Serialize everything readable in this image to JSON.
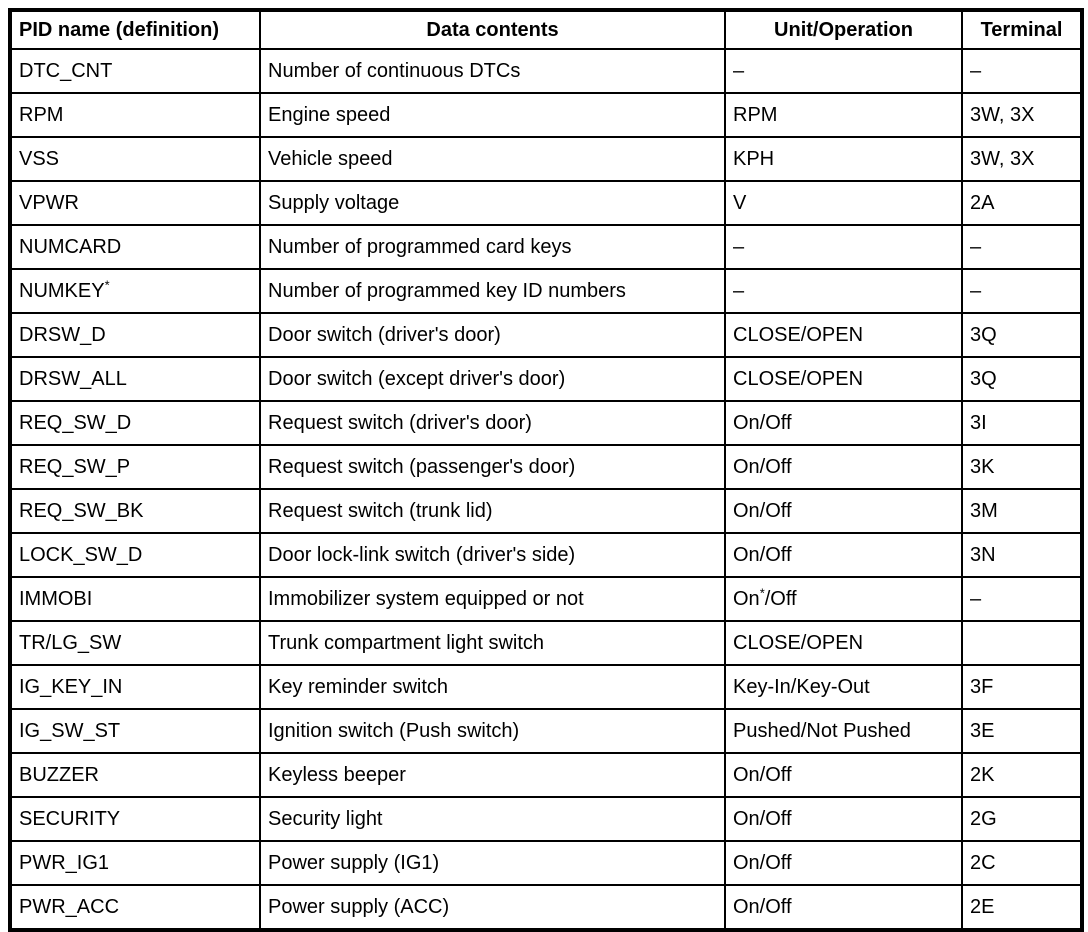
{
  "page": {
    "background_color": "#ffffff",
    "text_color": "#000000",
    "border_color": "#000000"
  },
  "table": {
    "columns": [
      {
        "label": "PID name (definition)"
      },
      {
        "label": "Data contents"
      },
      {
        "label": "Unit/Operation"
      },
      {
        "label": "Terminal"
      }
    ],
    "rows": [
      {
        "pid": "DTC_CNT",
        "pid_sup": "",
        "contents": "Number of continuous DTCs",
        "unit": "–",
        "unit_sup": "",
        "unit_rest": "",
        "terminal": "–"
      },
      {
        "pid": "RPM",
        "pid_sup": "",
        "contents": "Engine speed",
        "unit": "RPM",
        "unit_sup": "",
        "unit_rest": "",
        "terminal": "3W, 3X"
      },
      {
        "pid": "VSS",
        "pid_sup": "",
        "contents": "Vehicle speed",
        "unit": "KPH",
        "unit_sup": "",
        "unit_rest": "",
        "terminal": "3W, 3X"
      },
      {
        "pid": "VPWR",
        "pid_sup": "",
        "contents": "Supply voltage",
        "unit": "V",
        "unit_sup": "",
        "unit_rest": "",
        "terminal": "2A"
      },
      {
        "pid": "NUMCARD",
        "pid_sup": "",
        "contents": "Number of programmed card keys",
        "unit": "–",
        "unit_sup": "",
        "unit_rest": "",
        "terminal": "–"
      },
      {
        "pid": "NUMKEY",
        "pid_sup": "*",
        "contents": "Number of programmed key ID numbers",
        "unit": "–",
        "unit_sup": "",
        "unit_rest": "",
        "terminal": "–"
      },
      {
        "pid": "DRSW_D",
        "pid_sup": "",
        "contents": "Door switch (driver's door)",
        "unit": "CLOSE/OPEN",
        "unit_sup": "",
        "unit_rest": "",
        "terminal": "3Q"
      },
      {
        "pid": "DRSW_ALL",
        "pid_sup": "",
        "contents": "Door switch (except driver's door)",
        "unit": "CLOSE/OPEN",
        "unit_sup": "",
        "unit_rest": "",
        "terminal": "3Q"
      },
      {
        "pid": "REQ_SW_D",
        "pid_sup": "",
        "contents": "Request switch (driver's door)",
        "unit": "On/Off",
        "unit_sup": "",
        "unit_rest": "",
        "terminal": "3I"
      },
      {
        "pid": "REQ_SW_P",
        "pid_sup": "",
        "contents": "Request switch (passenger's door)",
        "unit": "On/Off",
        "unit_sup": "",
        "unit_rest": "",
        "terminal": "3K"
      },
      {
        "pid": "REQ_SW_BK",
        "pid_sup": "",
        "contents": "Request switch (trunk lid)",
        "unit": "On/Off",
        "unit_sup": "",
        "unit_rest": "",
        "terminal": "3M"
      },
      {
        "pid": "LOCK_SW_D",
        "pid_sup": "",
        "contents": "Door lock-link switch (driver's side)",
        "unit": "On/Off",
        "unit_sup": "",
        "unit_rest": "",
        "terminal": "3N"
      },
      {
        "pid": "IMMOBI",
        "pid_sup": "",
        "contents": "Immobilizer system equipped or not",
        "unit": "On",
        "unit_sup": "*",
        "unit_rest": "/Off",
        "terminal": "–"
      },
      {
        "pid": "TR/LG_SW",
        "pid_sup": "",
        "contents": "Trunk compartment light switch",
        "unit": "CLOSE/OPEN",
        "unit_sup": "",
        "unit_rest": "",
        "terminal": ""
      },
      {
        "pid": "IG_KEY_IN",
        "pid_sup": "",
        "contents": "Key reminder switch",
        "unit": "Key-In/Key-Out",
        "unit_sup": "",
        "unit_rest": "",
        "terminal": "3F"
      },
      {
        "pid": "IG_SW_ST",
        "pid_sup": "",
        "contents": "Ignition switch (Push switch)",
        "unit": "Pushed/Not Pushed",
        "unit_sup": "",
        "unit_rest": "",
        "terminal": "3E"
      },
      {
        "pid": "BUZZER",
        "pid_sup": "",
        "contents": "Keyless beeper",
        "unit": "On/Off",
        "unit_sup": "",
        "unit_rest": "",
        "terminal": "2K"
      },
      {
        "pid": "SECURITY",
        "pid_sup": "",
        "contents": "Security light",
        "unit": "On/Off",
        "unit_sup": "",
        "unit_rest": "",
        "terminal": "2G"
      },
      {
        "pid": "PWR_IG1",
        "pid_sup": "",
        "contents": "Power supply (IG1)",
        "unit": "On/Off",
        "unit_sup": "",
        "unit_rest": "",
        "terminal": "2C"
      },
      {
        "pid": "PWR_ACC",
        "pid_sup": "",
        "contents": "Power supply (ACC)",
        "unit": "On/Off",
        "unit_sup": "",
        "unit_rest": "",
        "terminal": "2E"
      }
    ]
  }
}
